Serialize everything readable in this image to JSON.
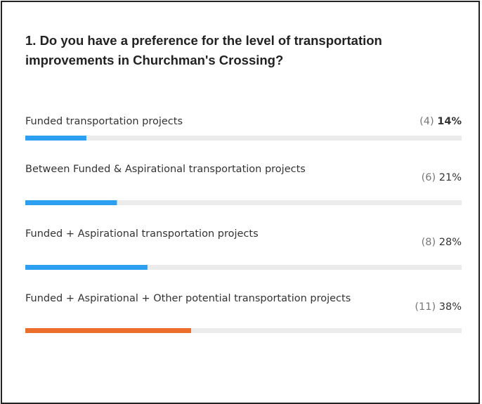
{
  "chart_data": {
    "type": "bar",
    "orientation": "horizontal",
    "title": "1. Do you have a preference for the level of transportation improvements in Churchman's Crossing?",
    "categories": [
      "Funded transportation projects",
      "Between Funded & Aspirational transportation projects",
      "Funded + Aspirational transportation projects",
      "Funded + Aspirational + Other potential transportation projects"
    ],
    "values": [
      14,
      21,
      28,
      38
    ],
    "value_labels": [
      "14%",
      "21%",
      "28%",
      "38%"
    ],
    "counts": [
      4,
      6,
      8,
      11
    ],
    "count_labels": [
      "(4)",
      "(6)",
      "(8)",
      "(11)"
    ],
    "colors": [
      "#2d9ff0",
      "#2d9ff0",
      "#2d9ff0",
      "#ec6e2b"
    ],
    "track_color": "#ebebeb",
    "xlim": [
      0,
      100
    ]
  }
}
